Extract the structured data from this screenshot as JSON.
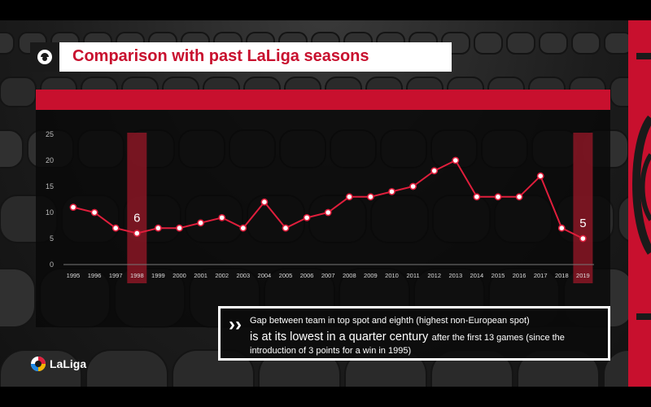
{
  "title": "Comparison with past LaLiga seasons",
  "brand": {
    "name": "LaLiga"
  },
  "note": {
    "line1": "Gap between team in top spot and eighth (highest non-European spot)",
    "line2_emphasis": "is at its lowest in a quarter century",
    "line2_rest": "after the first 13 games (since the",
    "line3": "introduction of 3 points for a win in 1995)"
  },
  "colors": {
    "accent": "#c8102e",
    "line": "#e01e3c",
    "highlight_band": "#8a1624"
  },
  "icons": [
    "laliga-logo-icon",
    "chevron-double-right-icon"
  ],
  "chart_data": {
    "type": "line",
    "title": "Comparison with past LaLiga seasons",
    "xlabel": "",
    "ylabel": "",
    "categories": [
      "1995",
      "1996",
      "1997",
      "1998",
      "1999",
      "2000",
      "2001",
      "2002",
      "2003",
      "2004",
      "2005",
      "2006",
      "2007",
      "2008",
      "2009",
      "2010",
      "2011",
      "2012",
      "2013",
      "2014",
      "2015",
      "2016",
      "2017",
      "2018",
      "2019"
    ],
    "values": [
      11,
      10,
      7,
      6,
      7,
      7,
      8,
      9,
      7,
      12,
      7,
      9,
      10,
      13,
      13,
      14,
      15,
      18,
      20,
      13,
      13,
      13,
      17,
      7,
      5
    ],
    "ylim": [
      0,
      25
    ],
    "yticks": [
      0,
      5,
      10,
      15,
      20,
      25
    ],
    "highlighted": [
      {
        "category": "1998",
        "label": "6"
      },
      {
        "category": "2019",
        "label": "5"
      }
    ],
    "grid": false,
    "legend": "none"
  }
}
